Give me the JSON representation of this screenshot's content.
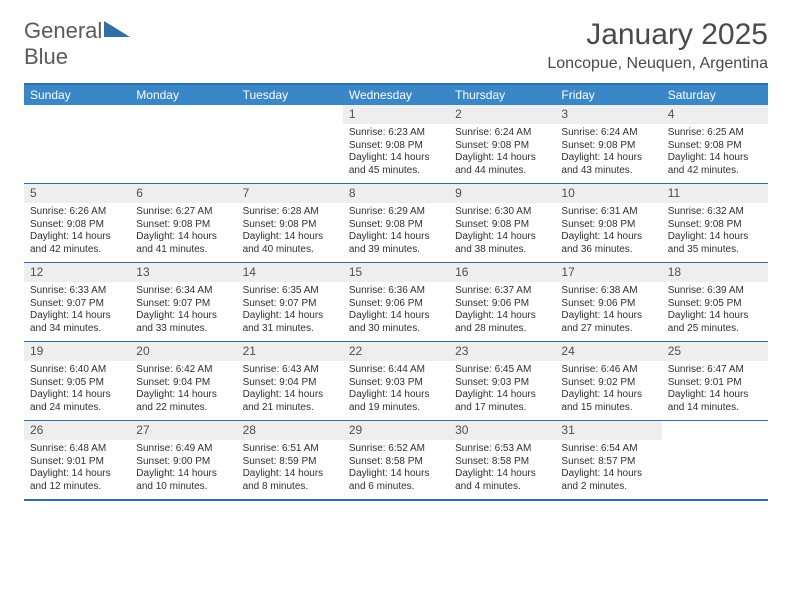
{
  "logo": {
    "word1": "General",
    "word2": "Blue"
  },
  "title": {
    "month": "January 2025",
    "location": "Loncopue, Neuquen, Argentina"
  },
  "colors": {
    "accent": "#3a87c8",
    "border": "#2f6fa7",
    "headerText": "#ffffff",
    "dayNumBg": "#eeeeee"
  },
  "dayNames": [
    "Sunday",
    "Monday",
    "Tuesday",
    "Wednesday",
    "Thursday",
    "Friday",
    "Saturday"
  ],
  "weeks": [
    [
      {
        "empty": true
      },
      {
        "empty": true
      },
      {
        "empty": true
      },
      {
        "num": "1",
        "sunrise": "Sunrise: 6:23 AM",
        "sunset": "Sunset: 9:08 PM",
        "daylight": "Daylight: 14 hours and 45 minutes."
      },
      {
        "num": "2",
        "sunrise": "Sunrise: 6:24 AM",
        "sunset": "Sunset: 9:08 PM",
        "daylight": "Daylight: 14 hours and 44 minutes."
      },
      {
        "num": "3",
        "sunrise": "Sunrise: 6:24 AM",
        "sunset": "Sunset: 9:08 PM",
        "daylight": "Daylight: 14 hours and 43 minutes."
      },
      {
        "num": "4",
        "sunrise": "Sunrise: 6:25 AM",
        "sunset": "Sunset: 9:08 PM",
        "daylight": "Daylight: 14 hours and 42 minutes."
      }
    ],
    [
      {
        "num": "5",
        "sunrise": "Sunrise: 6:26 AM",
        "sunset": "Sunset: 9:08 PM",
        "daylight": "Daylight: 14 hours and 42 minutes."
      },
      {
        "num": "6",
        "sunrise": "Sunrise: 6:27 AM",
        "sunset": "Sunset: 9:08 PM",
        "daylight": "Daylight: 14 hours and 41 minutes."
      },
      {
        "num": "7",
        "sunrise": "Sunrise: 6:28 AM",
        "sunset": "Sunset: 9:08 PM",
        "daylight": "Daylight: 14 hours and 40 minutes."
      },
      {
        "num": "8",
        "sunrise": "Sunrise: 6:29 AM",
        "sunset": "Sunset: 9:08 PM",
        "daylight": "Daylight: 14 hours and 39 minutes."
      },
      {
        "num": "9",
        "sunrise": "Sunrise: 6:30 AM",
        "sunset": "Sunset: 9:08 PM",
        "daylight": "Daylight: 14 hours and 38 minutes."
      },
      {
        "num": "10",
        "sunrise": "Sunrise: 6:31 AM",
        "sunset": "Sunset: 9:08 PM",
        "daylight": "Daylight: 14 hours and 36 minutes."
      },
      {
        "num": "11",
        "sunrise": "Sunrise: 6:32 AM",
        "sunset": "Sunset: 9:08 PM",
        "daylight": "Daylight: 14 hours and 35 minutes."
      }
    ],
    [
      {
        "num": "12",
        "sunrise": "Sunrise: 6:33 AM",
        "sunset": "Sunset: 9:07 PM",
        "daylight": "Daylight: 14 hours and 34 minutes."
      },
      {
        "num": "13",
        "sunrise": "Sunrise: 6:34 AM",
        "sunset": "Sunset: 9:07 PM",
        "daylight": "Daylight: 14 hours and 33 minutes."
      },
      {
        "num": "14",
        "sunrise": "Sunrise: 6:35 AM",
        "sunset": "Sunset: 9:07 PM",
        "daylight": "Daylight: 14 hours and 31 minutes."
      },
      {
        "num": "15",
        "sunrise": "Sunrise: 6:36 AM",
        "sunset": "Sunset: 9:06 PM",
        "daylight": "Daylight: 14 hours and 30 minutes."
      },
      {
        "num": "16",
        "sunrise": "Sunrise: 6:37 AM",
        "sunset": "Sunset: 9:06 PM",
        "daylight": "Daylight: 14 hours and 28 minutes."
      },
      {
        "num": "17",
        "sunrise": "Sunrise: 6:38 AM",
        "sunset": "Sunset: 9:06 PM",
        "daylight": "Daylight: 14 hours and 27 minutes."
      },
      {
        "num": "18",
        "sunrise": "Sunrise: 6:39 AM",
        "sunset": "Sunset: 9:05 PM",
        "daylight": "Daylight: 14 hours and 25 minutes."
      }
    ],
    [
      {
        "num": "19",
        "sunrise": "Sunrise: 6:40 AM",
        "sunset": "Sunset: 9:05 PM",
        "daylight": "Daylight: 14 hours and 24 minutes."
      },
      {
        "num": "20",
        "sunrise": "Sunrise: 6:42 AM",
        "sunset": "Sunset: 9:04 PM",
        "daylight": "Daylight: 14 hours and 22 minutes."
      },
      {
        "num": "21",
        "sunrise": "Sunrise: 6:43 AM",
        "sunset": "Sunset: 9:04 PM",
        "daylight": "Daylight: 14 hours and 21 minutes."
      },
      {
        "num": "22",
        "sunrise": "Sunrise: 6:44 AM",
        "sunset": "Sunset: 9:03 PM",
        "daylight": "Daylight: 14 hours and 19 minutes."
      },
      {
        "num": "23",
        "sunrise": "Sunrise: 6:45 AM",
        "sunset": "Sunset: 9:03 PM",
        "daylight": "Daylight: 14 hours and 17 minutes."
      },
      {
        "num": "24",
        "sunrise": "Sunrise: 6:46 AM",
        "sunset": "Sunset: 9:02 PM",
        "daylight": "Daylight: 14 hours and 15 minutes."
      },
      {
        "num": "25",
        "sunrise": "Sunrise: 6:47 AM",
        "sunset": "Sunset: 9:01 PM",
        "daylight": "Daylight: 14 hours and 14 minutes."
      }
    ],
    [
      {
        "num": "26",
        "sunrise": "Sunrise: 6:48 AM",
        "sunset": "Sunset: 9:01 PM",
        "daylight": "Daylight: 14 hours and 12 minutes."
      },
      {
        "num": "27",
        "sunrise": "Sunrise: 6:49 AM",
        "sunset": "Sunset: 9:00 PM",
        "daylight": "Daylight: 14 hours and 10 minutes."
      },
      {
        "num": "28",
        "sunrise": "Sunrise: 6:51 AM",
        "sunset": "Sunset: 8:59 PM",
        "daylight": "Daylight: 14 hours and 8 minutes."
      },
      {
        "num": "29",
        "sunrise": "Sunrise: 6:52 AM",
        "sunset": "Sunset: 8:58 PM",
        "daylight": "Daylight: 14 hours and 6 minutes."
      },
      {
        "num": "30",
        "sunrise": "Sunrise: 6:53 AM",
        "sunset": "Sunset: 8:58 PM",
        "daylight": "Daylight: 14 hours and 4 minutes."
      },
      {
        "num": "31",
        "sunrise": "Sunrise: 6:54 AM",
        "sunset": "Sunset: 8:57 PM",
        "daylight": "Daylight: 14 hours and 2 minutes."
      },
      {
        "empty": true
      }
    ]
  ]
}
